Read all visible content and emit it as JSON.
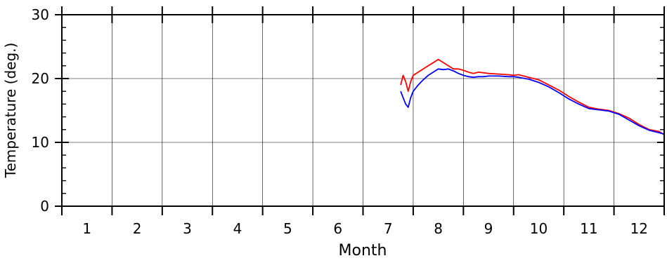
{
  "chart_data": {
    "type": "line",
    "xlabel": "Month",
    "ylabel": "Temperature (deg.)",
    "title": "",
    "xlim": [
      0.5,
      12.5
    ],
    "ylim": [
      0,
      30
    ],
    "month_ticks": [
      0.5,
      1.5,
      2.5,
      3.5,
      4.5,
      5.5,
      6.5,
      7.5,
      8.5,
      9.5,
      10.5,
      11.5,
      12.5
    ],
    "month_labels": [
      "1",
      "2",
      "3",
      "4",
      "5",
      "6",
      "7",
      "8",
      "9",
      "10",
      "11",
      "12"
    ],
    "month_label_positions": [
      1,
      2,
      3,
      4,
      5,
      6,
      7,
      8,
      9,
      10,
      11,
      12
    ],
    "y_ticks": [
      0,
      10,
      20,
      30
    ],
    "y_tick_labels": [
      "0",
      "10",
      "20",
      "30"
    ],
    "grid": true,
    "series": [
      {
        "color": "#ff0000",
        "x": [
          7.25,
          7.3,
          7.35,
          7.4,
          7.45,
          7.5,
          7.6,
          7.7,
          7.8,
          7.9,
          8.0,
          8.1,
          8.2,
          8.3,
          8.4,
          8.5,
          8.6,
          8.7,
          8.8,
          8.9,
          9.0,
          9.2,
          9.4,
          9.5,
          9.6,
          9.8,
          10.0,
          10.2,
          10.4,
          10.6,
          10.8,
          11.0,
          11.2,
          11.4,
          11.6,
          11.8,
          12.0,
          12.2,
          12.4,
          12.5
        ],
        "y": [
          19.0,
          20.5,
          19.5,
          18.0,
          19.5,
          20.5,
          21.0,
          21.5,
          22.0,
          22.5,
          23.0,
          22.5,
          22.0,
          21.5,
          21.5,
          21.3,
          21.0,
          20.8,
          21.0,
          20.9,
          20.8,
          20.7,
          20.6,
          20.5,
          20.6,
          20.2,
          19.8,
          19.0,
          18.2,
          17.2,
          16.3,
          15.5,
          15.2,
          15.0,
          14.5,
          13.8,
          12.8,
          12.0,
          11.7,
          11.2
        ]
      },
      {
        "color": "#0000ff",
        "x": [
          7.25,
          7.3,
          7.35,
          7.4,
          7.45,
          7.5,
          7.6,
          7.7,
          7.8,
          7.9,
          8.0,
          8.1,
          8.2,
          8.3,
          8.4,
          8.5,
          8.6,
          8.7,
          8.8,
          8.9,
          9.0,
          9.2,
          9.4,
          9.5,
          9.6,
          9.8,
          10.0,
          10.2,
          10.4,
          10.6,
          10.8,
          11.0,
          11.2,
          11.4,
          11.6,
          11.8,
          12.0,
          12.2,
          12.4,
          12.5
        ],
        "y": [
          18.0,
          17.0,
          16.0,
          15.5,
          17.0,
          18.0,
          19.0,
          19.8,
          20.5,
          21.0,
          21.5,
          21.4,
          21.5,
          21.2,
          20.8,
          20.5,
          20.3,
          20.2,
          20.3,
          20.3,
          20.4,
          20.4,
          20.3,
          20.3,
          20.2,
          19.9,
          19.4,
          18.7,
          17.8,
          16.8,
          16.0,
          15.3,
          15.1,
          14.9,
          14.4,
          13.5,
          12.6,
          11.9,
          11.5,
          11.3
        ]
      }
    ]
  }
}
